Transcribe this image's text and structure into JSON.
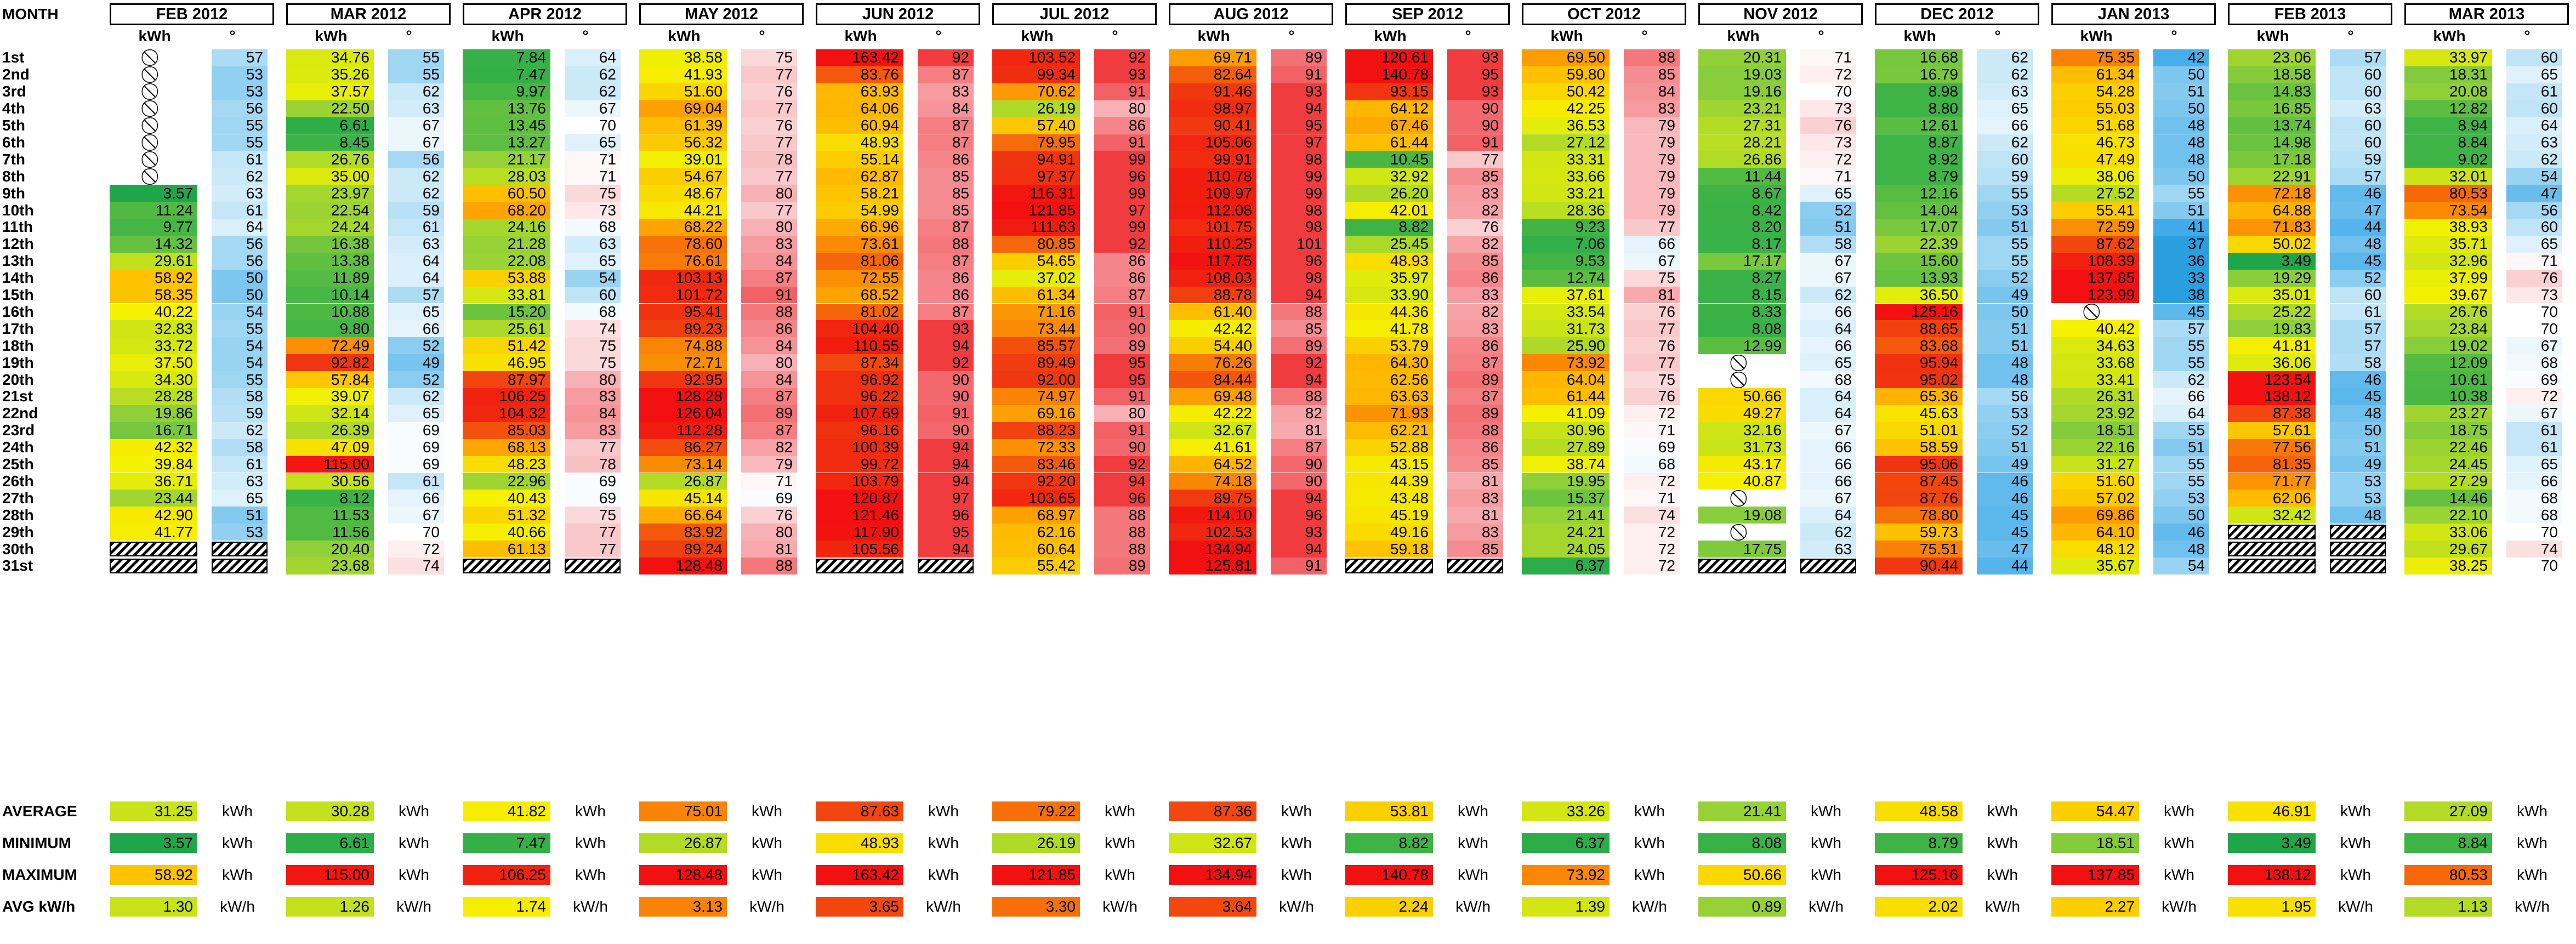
{
  "header": {
    "month_label": "MONTH",
    "kwh_label": "kWh",
    "deg_label": "°"
  },
  "row_labels": [
    "1st",
    "2nd",
    "3rd",
    "4th",
    "5th",
    "6th",
    "7th",
    "8th",
    "9th",
    "10th",
    "11th",
    "12th",
    "13th",
    "14th",
    "15th",
    "16th",
    "17th",
    "18th",
    "19th",
    "20th",
    "21st",
    "22nd",
    "23rd",
    "24th",
    "25th",
    "26th",
    "27th",
    "28th",
    "29th",
    "30th",
    "31st"
  ],
  "months": [
    {
      "name": "FEB 2012",
      "kwh": [
        null,
        null,
        null,
        null,
        null,
        null,
        null,
        null,
        "3.57",
        "11.24",
        "9.77",
        "14.32",
        "29.61",
        "58.92",
        "58.35",
        "40.22",
        "32.83",
        "33.72",
        "37.50",
        "34.30",
        "28.28",
        "19.86",
        "16.71",
        "42.32",
        "39.84",
        "36.71",
        "23.44",
        "42.90",
        "41.77",
        "X",
        "X"
      ],
      "deg": [
        "57",
        "53",
        "53",
        "56",
        "55",
        "55",
        "61",
        "62",
        "63",
        "61",
        "64",
        "56",
        "56",
        "50",
        "50",
        "54",
        "55",
        "54",
        "54",
        "55",
        "58",
        "59",
        "62",
        "58",
        "61",
        "63",
        "65",
        "51",
        "53",
        "X",
        "X"
      ],
      "summary": {
        "avg": "31.25",
        "min": "3.57",
        "max": "58.92",
        "avgkwh": "1.30"
      }
    },
    {
      "name": "MAR 2012",
      "kwh": [
        "34.76",
        "35.26",
        "37.57",
        "22.50",
        "6.61",
        "8.45",
        "26.76",
        "35.00",
        "23.97",
        "22.54",
        "24.24",
        "16.38",
        "13.38",
        "11.89",
        "10.14",
        "10.88",
        "9.80",
        "72.49",
        "92.82",
        "57.84",
        "39.07",
        "32.14",
        "26.39",
        "47.09",
        "115.00",
        "30.56",
        "8.12",
        "11.53",
        "11.56",
        "20.40",
        "23.68"
      ],
      "deg": [
        "55",
        "55",
        "62",
        "63",
        "67",
        "67",
        "56",
        "62",
        "62",
        "59",
        "61",
        "63",
        "64",
        "64",
        "57",
        "65",
        "66",
        "52",
        "49",
        "52",
        "62",
        "65",
        "69",
        "69",
        "69",
        "61",
        "66",
        "67",
        "70",
        "72",
        "74"
      ],
      "summary": {
        "avg": "30.28",
        "min": "6.61",
        "max": "115.00",
        "avgkwh": "1.26"
      }
    },
    {
      "name": "APR 2012",
      "kwh": [
        "7.84",
        "7.47",
        "9.97",
        "13.76",
        "13.45",
        "13.27",
        "21.17",
        "28.03",
        "60.50",
        "68.20",
        "24.16",
        "21.28",
        "22.08",
        "53.88",
        "33.81",
        "15.20",
        "25.61",
        "51.42",
        "46.95",
        "87.97",
        "106.25",
        "104.32",
        "85.03",
        "68.13",
        "48.23",
        "22.96",
        "40.43",
        "51.32",
        "40.66",
        "61.13",
        "X"
      ],
      "deg": [
        "64",
        "62",
        "62",
        "67",
        "70",
        "65",
        "71",
        "71",
        "75",
        "73",
        "68",
        "63",
        "65",
        "54",
        "60",
        "68",
        "74",
        "75",
        "75",
        "80",
        "83",
        "84",
        "83",
        "77",
        "78",
        "69",
        "69",
        "75",
        "77",
        "77",
        "X"
      ],
      "summary": {
        "avg": "41.82",
        "min": "7.47",
        "max": "106.25",
        "avgkwh": "1.74"
      }
    },
    {
      "name": "MAY 2012",
      "kwh": [
        "38.58",
        "41.93",
        "51.60",
        "69.04",
        "61.39",
        "56.32",
        "39.01",
        "54.67",
        "48.67",
        "44.21",
        "68.22",
        "78.60",
        "76.61",
        "103.13",
        "101.72",
        "95.41",
        "89.23",
        "74.88",
        "72.71",
        "92.95",
        "128.28",
        "126.04",
        "112.28",
        "86.27",
        "73.14",
        "26.87",
        "45.14",
        "66.64",
        "83.92",
        "89.24",
        "128.48"
      ],
      "deg": [
        "75",
        "77",
        "76",
        "77",
        "76",
        "77",
        "78",
        "77",
        "80",
        "77",
        "80",
        "83",
        "84",
        "87",
        "91",
        "88",
        "86",
        "84",
        "80",
        "84",
        "87",
        "89",
        "87",
        "82",
        "79",
        "71",
        "69",
        "76",
        "80",
        "81",
        "88"
      ],
      "summary": {
        "avg": "75.01",
        "min": "26.87",
        "max": "128.48",
        "avgkwh": "3.13"
      }
    },
    {
      "name": "JUN 2012",
      "kwh": [
        "163.42",
        "83.76",
        "63.93",
        "64.06",
        "60.94",
        "48.93",
        "55.14",
        "62.87",
        "58.21",
        "54.99",
        "66.96",
        "73.61",
        "81.06",
        "72.55",
        "68.52",
        "81.02",
        "104.40",
        "110.55",
        "87.34",
        "96.92",
        "96.22",
        "107.69",
        "96.16",
        "100.39",
        "99.72",
        "103.79",
        "120.87",
        "121.46",
        "117.90",
        "105.56",
        "X"
      ],
      "deg": [
        "92",
        "87",
        "83",
        "84",
        "87",
        "87",
        "86",
        "85",
        "85",
        "85",
        "87",
        "88",
        "87",
        "86",
        "86",
        "87",
        "93",
        "94",
        "92",
        "90",
        "90",
        "91",
        "90",
        "94",
        "94",
        "94",
        "97",
        "96",
        "95",
        "94",
        "X"
      ],
      "summary": {
        "avg": "87.63",
        "min": "48.93",
        "max": "163.42",
        "avgkwh": "3.65"
      }
    },
    {
      "name": "JUL 2012",
      "kwh": [
        "103.52",
        "99.34",
        "70.62",
        "26.19",
        "57.40",
        "79.95",
        "94.91",
        "97.37",
        "116.31",
        "121.85",
        "111.63",
        "80.85",
        "54.65",
        "37.02",
        "61.34",
        "71.16",
        "73.44",
        "85.57",
        "89.49",
        "92.00",
        "74.97",
        "69.16",
        "88.23",
        "72.33",
        "83.46",
        "92.20",
        "103.65",
        "68.97",
        "62.16",
        "60.64",
        "55.42"
      ],
      "deg": [
        "92",
        "93",
        "91",
        "80",
        "86",
        "91",
        "99",
        "96",
        "99",
        "97",
        "99",
        "92",
        "86",
        "86",
        "87",
        "91",
        "90",
        "89",
        "95",
        "95",
        "91",
        "80",
        "91",
        "90",
        "92",
        "94",
        "96",
        "88",
        "88",
        "88",
        "89"
      ],
      "summary": {
        "avg": "79.22",
        "min": "26.19",
        "max": "121.85",
        "avgkwh": "3.30"
      }
    },
    {
      "name": "AUG 2012",
      "kwh": [
        "69.71",
        "82.64",
        "91.46",
        "98.97",
        "90.41",
        "105.06",
        "99.91",
        "110.78",
        "109.97",
        "112.08",
        "101.75",
        "110.25",
        "117.75",
        "108.03",
        "88.78",
        "61.40",
        "42.42",
        "54.40",
        "76.26",
        "84.44",
        "69.48",
        "42.22",
        "32.67",
        "41.61",
        "64.52",
        "74.18",
        "89.75",
        "114.10",
        "102.53",
        "134.94",
        "125.81"
      ],
      "deg": [
        "89",
        "91",
        "93",
        "94",
        "95",
        "97",
        "98",
        "99",
        "99",
        "98",
        "98",
        "101",
        "96",
        "98",
        "94",
        "88",
        "85",
        "89",
        "92",
        "94",
        "88",
        "82",
        "81",
        "87",
        "90",
        "90",
        "94",
        "96",
        "93",
        "94",
        "91"
      ],
      "summary": {
        "avg": "87.36",
        "min": "32.67",
        "max": "134.94",
        "avgkwh": "3.64"
      }
    },
    {
      "name": "SEP 2012",
      "kwh": [
        "120.61",
        "140.78",
        "93.15",
        "64.12",
        "67.46",
        "61.44",
        "10.45",
        "32.92",
        "26.20",
        "42.01",
        "8.82",
        "25.45",
        "48.93",
        "35.97",
        "33.90",
        "44.36",
        "41.78",
        "53.79",
        "64.30",
        "62.56",
        "63.63",
        "71.93",
        "62.21",
        "52.88",
        "43.15",
        "44.39",
        "43.48",
        "45.19",
        "49.16",
        "59.18",
        "X"
      ],
      "deg": [
        "93",
        "95",
        "93",
        "90",
        "90",
        "91",
        "77",
        "85",
        "83",
        "82",
        "76",
        "82",
        "85",
        "86",
        "83",
        "82",
        "83",
        "86",
        "87",
        "89",
        "87",
        "89",
        "88",
        "86",
        "85",
        "81",
        "83",
        "81",
        "83",
        "85",
        "X"
      ],
      "summary": {
        "avg": "53.81",
        "min": "8.82",
        "max": "140.78",
        "avgkwh": "2.24"
      }
    },
    {
      "name": "OCT 2012",
      "kwh": [
        "69.50",
        "59.80",
        "50.42",
        "42.25",
        "36.53",
        "27.12",
        "33.31",
        "33.66",
        "33.21",
        "28.36",
        "9.23",
        "7.06",
        "9.53",
        "12.74",
        "37.61",
        "33.54",
        "31.73",
        "25.90",
        "73.92",
        "64.04",
        "61.44",
        "41.09",
        "30.96",
        "27.89",
        "38.74",
        "19.95",
        "15.37",
        "21.41",
        "24.21",
        "24.05",
        "6.37"
      ],
      "deg": [
        "88",
        "85",
        "84",
        "83",
        "79",
        "79",
        "79",
        "79",
        "79",
        "79",
        "77",
        "66",
        "67",
        "75",
        "81",
        "76",
        "77",
        "76",
        "77",
        "75",
        "76",
        "72",
        "71",
        "69",
        "68",
        "72",
        "71",
        "74",
        "72",
        "72",
        "72"
      ],
      "summary": {
        "avg": "33.26",
        "min": "6.37",
        "max": "73.92",
        "avgkwh": "1.39"
      }
    },
    {
      "name": "NOV 2012",
      "kwh": [
        "20.31",
        "19.03",
        "19.16",
        "23.21",
        "27.31",
        "28.21",
        "26.86",
        "11.44",
        "8.67",
        "8.42",
        "8.20",
        "8.17",
        "17.17",
        "8.27",
        "8.15",
        "8.33",
        "8.08",
        "12.99",
        null,
        null,
        "50.66",
        "49.27",
        "32.16",
        "31.73",
        "43.17",
        "40.87",
        null,
        "19.08",
        null,
        "17.75",
        "X"
      ],
      "deg": [
        "71",
        "72",
        "70",
        "73",
        "76",
        "73",
        "72",
        "71",
        "65",
        "52",
        "51",
        "58",
        "67",
        "67",
        "62",
        "66",
        "64",
        "66",
        "65",
        "68",
        "64",
        "64",
        "67",
        "66",
        "66",
        "66",
        "67",
        "64",
        "62",
        "63",
        "X"
      ],
      "summary": {
        "avg": "21.41",
        "min": "8.08",
        "max": "50.66",
        "avgkwh": "0.89"
      }
    },
    {
      "name": "DEC 2012",
      "kwh": [
        "16.68",
        "16.79",
        "8.98",
        "8.80",
        "12.61",
        "8.87",
        "8.92",
        "8.79",
        "12.16",
        "14.04",
        "17.07",
        "22.39",
        "15.60",
        "13.93",
        "36.50",
        "125.16",
        "88.65",
        "83.68",
        "95.94",
        "95.02",
        "65.36",
        "45.63",
        "51.01",
        "58.59",
        "95.06",
        "87.45",
        "87.76",
        "78.80",
        "59.73",
        "75.51",
        "90.44"
      ],
      "deg": [
        "62",
        "62",
        "63",
        "65",
        "66",
        "62",
        "60",
        "59",
        "55",
        "53",
        "51",
        "55",
        "55",
        "52",
        "49",
        "50",
        "51",
        "51",
        "48",
        "48",
        "56",
        "53",
        "52",
        "51",
        "49",
        "46",
        "46",
        "45",
        "45",
        "47",
        "44"
      ],
      "summary": {
        "avg": "48.58",
        "min": "8.79",
        "max": "125.16",
        "avgkwh": "2.02"
      }
    },
    {
      "name": "JAN 2013",
      "kwh": [
        "75.35",
        "61.34",
        "54.28",
        "55.03",
        "51.68",
        "46.73",
        "47.49",
        "38.06",
        "27.52",
        "55.41",
        "72.59",
        "87.62",
        "108.39",
        "137.85",
        "123.99",
        null,
        "40.42",
        "34.63",
        "33.68",
        "33.41",
        "26.31",
        "23.92",
        "18.51",
        "22.16",
        "31.27",
        "51.60",
        "57.02",
        "69.86",
        "64.10",
        "48.12",
        "35.67"
      ],
      "deg": [
        "42",
        "50",
        "51",
        "50",
        "48",
        "48",
        "48",
        "50",
        "55",
        "51",
        "41",
        "37",
        "36",
        "33",
        "38",
        "45",
        "57",
        "55",
        "55",
        "62",
        "66",
        "64",
        "55",
        "51",
        "55",
        "55",
        "53",
        "50",
        "46",
        "48",
        "54"
      ],
      "summary": {
        "avg": "54.47",
        "min": "18.51",
        "max": "137.85",
        "avgkwh": "2.27"
      }
    },
    {
      "name": "FEB 2013",
      "kwh": [
        "23.06",
        "18.58",
        "14.83",
        "16.85",
        "13.74",
        "14.98",
        "17.18",
        "22.91",
        "72.18",
        "64.88",
        "71.83",
        "50.02",
        "3.49",
        "19.29",
        "35.01",
        "25.22",
        "19.83",
        "41.81",
        "36.06",
        "123.54",
        "138.12",
        "87.38",
        "57.61",
        "77.56",
        "81.35",
        "71.77",
        "62.06",
        "32.42",
        "X",
        "X",
        "X"
      ],
      "deg": [
        "57",
        "60",
        "60",
        "63",
        "60",
        "60",
        "59",
        "57",
        "46",
        "47",
        "44",
        "48",
        "45",
        "52",
        "60",
        "61",
        "57",
        "57",
        "58",
        "46",
        "45",
        "48",
        "50",
        "51",
        "49",
        "53",
        "53",
        "48",
        "X",
        "X",
        "X"
      ],
      "summary": {
        "avg": "46.91",
        "min": "3.49",
        "max": "138.12",
        "avgkwh": "1.95"
      }
    },
    {
      "name": "MAR 2013",
      "kwh": [
        "33.97",
        "18.31",
        "20.08",
        "12.82",
        "8.94",
        "8.84",
        "9.02",
        "32.01",
        "80.53",
        "73.54",
        "38.93",
        "35.71",
        "32.96",
        "37.99",
        "39.67",
        "26.76",
        "23.84",
        "19.02",
        "12.09",
        "10.61",
        "10.38",
        "23.27",
        "18.75",
        "22.46",
        "24.45",
        "27.29",
        "14.46",
        "22.10",
        "33.06",
        "29.67",
        "38.25"
      ],
      "deg": [
        "60",
        "65",
        "61",
        "60",
        "64",
        "63",
        "62",
        "54",
        "47",
        "56",
        "60",
        "65",
        "71",
        "76",
        "73",
        "70",
        "70",
        "67",
        "68",
        "69",
        "72",
        "67",
        "61",
        "61",
        "65",
        "66",
        "68",
        "68",
        "70",
        "74",
        "70"
      ],
      "summary": {
        "avg": "27.09",
        "min": "8.84",
        "max": "80.53",
        "avgkwh": "1.13"
      }
    }
  ],
  "summary_rows": [
    {
      "label": "AVERAGE",
      "key": "avg",
      "unit": "kWh"
    },
    {
      "label": "MINIMUM",
      "key": "min",
      "unit": "kWh"
    },
    {
      "label": "MAXIMUM",
      "key": "max",
      "unit": "kWh"
    },
    {
      "label": "AVG kW/h",
      "key": "avgkwh",
      "unit": "kW/h"
    }
  ],
  "no_data_symbol": "⃠",
  "colors": {
    "high": "#f8696b",
    "mid": "#ffeb84",
    "low": "#63be7b",
    "temp_cold": "#5a8ac6",
    "temp_hot": "#f8696b"
  }
}
